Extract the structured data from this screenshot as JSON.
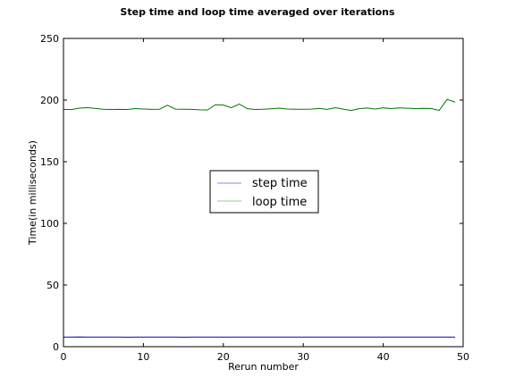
{
  "chart_data": {
    "type": "line",
    "title": "Step time and loop time averaged over iterations",
    "xlabel": "Rerun number",
    "ylabel": "Time(in milliseconds)",
    "xlim": [
      0,
      50
    ],
    "ylim": [
      0,
      250
    ],
    "xticks": [
      0,
      10,
      20,
      30,
      40,
      50
    ],
    "yticks": [
      0,
      50,
      100,
      150,
      200,
      250
    ],
    "grid": false,
    "legend_position": "center",
    "series": [
      {
        "name": "step time",
        "color": "#0000cc",
        "legend_color": "#b0b0ee",
        "x": [
          0,
          1,
          2,
          3,
          4,
          5,
          6,
          7,
          8,
          9,
          10,
          11,
          12,
          13,
          14,
          15,
          16,
          17,
          18,
          19,
          20,
          21,
          22,
          23,
          24,
          25,
          26,
          27,
          28,
          29,
          30,
          31,
          32,
          33,
          34,
          35,
          36,
          37,
          38,
          39,
          40,
          41,
          42,
          43,
          44,
          45,
          46,
          47,
          48,
          49
        ],
        "values": [
          7.8,
          7.8,
          7.9,
          7.8,
          7.8,
          7.8,
          7.8,
          7.8,
          7.7,
          7.8,
          7.8,
          7.8,
          7.8,
          7.8,
          7.8,
          7.7,
          7.8,
          7.8,
          7.8,
          7.8,
          7.8,
          7.8,
          7.8,
          7.8,
          7.8,
          7.8,
          7.8,
          7.8,
          7.8,
          7.8,
          7.8,
          7.8,
          7.8,
          7.8,
          7.8,
          7.8,
          7.8,
          7.8,
          7.8,
          7.8,
          7.8,
          7.8,
          7.8,
          7.8,
          7.8,
          7.8,
          7.8,
          7.8,
          7.8,
          7.8
        ]
      },
      {
        "name": "loop time",
        "color": "#007700",
        "legend_color": "#b0e0b0",
        "x": [
          0,
          1,
          2,
          3,
          4,
          5,
          6,
          7,
          8,
          9,
          10,
          11,
          12,
          13,
          14,
          15,
          16,
          17,
          18,
          19,
          20,
          21,
          22,
          23,
          24,
          25,
          26,
          27,
          28,
          29,
          30,
          31,
          32,
          33,
          34,
          35,
          36,
          37,
          38,
          39,
          40,
          41,
          42,
          43,
          44,
          45,
          46,
          47,
          48,
          49
        ],
        "values": [
          192.5,
          192.3,
          193.5,
          193.8,
          193.2,
          192.6,
          192.4,
          192.5,
          192.4,
          193.1,
          192.8,
          192.5,
          192.6,
          195.8,
          192.7,
          192.6,
          192.5,
          192.1,
          191.9,
          196.2,
          196.0,
          193.8,
          196.8,
          193.0,
          192.4,
          192.6,
          192.9,
          193.5,
          192.8,
          192.6,
          192.6,
          192.7,
          193.2,
          192.5,
          193.8,
          192.7,
          191.6,
          193.0,
          193.6,
          192.8,
          193.7,
          193.1,
          193.7,
          193.4,
          193.1,
          193.3,
          193.2,
          191.6,
          200.6,
          198.3
        ]
      }
    ]
  }
}
